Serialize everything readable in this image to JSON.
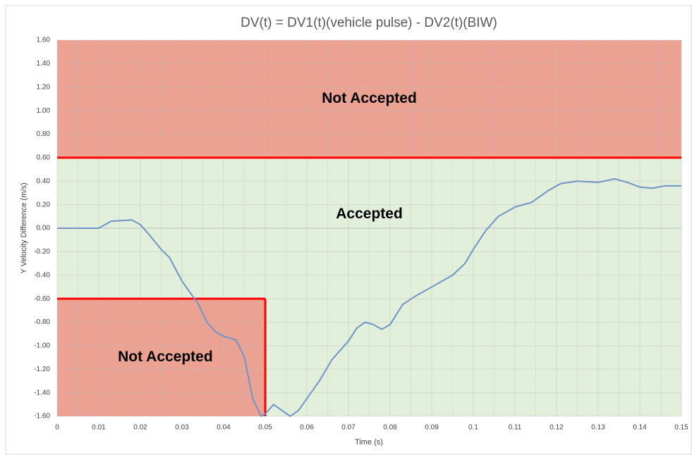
{
  "chart_data": {
    "type": "line",
    "title": "DV(t) = DV1(t)(vehicle pulse) - DV2(t)(BIW)",
    "x_label": "Time (s)",
    "y_label": "Y Velocity Difference (m/s)",
    "xlim": [
      0,
      0.15
    ],
    "ylim": [
      -1.6,
      1.6
    ],
    "xticks": [
      0,
      0.01,
      0.02,
      0.03,
      0.04,
      0.05,
      0.06,
      0.07,
      0.08,
      0.09,
      0.1,
      0.11,
      0.12,
      0.13,
      0.14,
      0.15
    ],
    "yticks": [
      {
        "value": -1.6,
        "label": "-1.60"
      },
      {
        "value": -1.4,
        "label": "-1.40"
      },
      {
        "value": -1.2,
        "label": "-1.20"
      },
      {
        "value": -1.0,
        "label": "-1.00"
      },
      {
        "value": -0.8,
        "label": "-0.80"
      },
      {
        "value": -0.6,
        "label": "-0.60"
      },
      {
        "value": -0.4,
        "label": "-0.40"
      },
      {
        "value": -0.2,
        "label": "-0.20"
      },
      {
        "value": 0,
        "label": "0.00"
      },
      {
        "value": 0.2,
        "label": "0.20"
      },
      {
        "value": 0.4,
        "label": "0.40"
      },
      {
        "value": 0.6,
        "label": "0.60"
      },
      {
        "value": 0.8,
        "label": "0.80"
      },
      {
        "value": 1.0,
        "label": "1.00"
      },
      {
        "value": 1.2,
        "label": "1.20"
      },
      {
        "value": 1.4,
        "label": "1.40"
      },
      {
        "value": 1.6,
        "label": "1.60"
      }
    ],
    "grid": true,
    "regions": [
      {
        "label": "Accepted",
        "xlim": [
          0,
          0.15
        ],
        "ylim": [
          -1.6,
          0.6
        ],
        "color": "#e2efda"
      },
      {
        "label": "Not Accepted",
        "xlim": [
          0,
          0.15
        ],
        "ylim": [
          0.6,
          1.6
        ],
        "color": "#eba292"
      },
      {
        "label": "Not Accepted",
        "xlim": [
          0,
          0.05
        ],
        "ylim": [
          -1.6,
          -0.6
        ],
        "color": "#eba292"
      }
    ],
    "boundary_color": "#ff0000",
    "series": [
      {
        "color": "#6f95c8",
        "x": [
          0,
          0.005,
          0.01,
          0.013,
          0.018,
          0.02,
          0.022,
          0.025,
          0.027,
          0.03,
          0.032,
          0.034,
          0.036,
          0.038,
          0.04,
          0.043,
          0.045,
          0.047,
          0.049,
          0.05,
          0.052,
          0.054,
          0.056,
          0.058,
          0.06,
          0.063,
          0.066,
          0.07,
          0.072,
          0.074,
          0.076,
          0.078,
          0.08,
          0.083,
          0.086,
          0.09,
          0.095,
          0.098,
          0.1,
          0.103,
          0.106,
          0.11,
          0.114,
          0.118,
          0.121,
          0.125,
          0.13,
          0.134,
          0.137,
          0.14,
          0.143,
          0.146,
          0.15
        ],
        "values": [
          0,
          0,
          0,
          0.06,
          0.07,
          0.03,
          -0.05,
          -0.18,
          -0.25,
          -0.45,
          -0.55,
          -0.65,
          -0.8,
          -0.88,
          -0.92,
          -0.95,
          -1.1,
          -1.45,
          -1.6,
          -1.58,
          -1.5,
          -1.55,
          -1.6,
          -1.55,
          -1.45,
          -1.3,
          -1.12,
          -0.96,
          -0.85,
          -0.8,
          -0.82,
          -0.86,
          -0.82,
          -0.65,
          -0.58,
          -0.5,
          -0.4,
          -0.3,
          -0.18,
          -0.02,
          0.1,
          0.18,
          0.22,
          0.32,
          0.38,
          0.4,
          0.39,
          0.42,
          0.39,
          0.35,
          0.34,
          0.36,
          0.36
        ]
      }
    ]
  }
}
